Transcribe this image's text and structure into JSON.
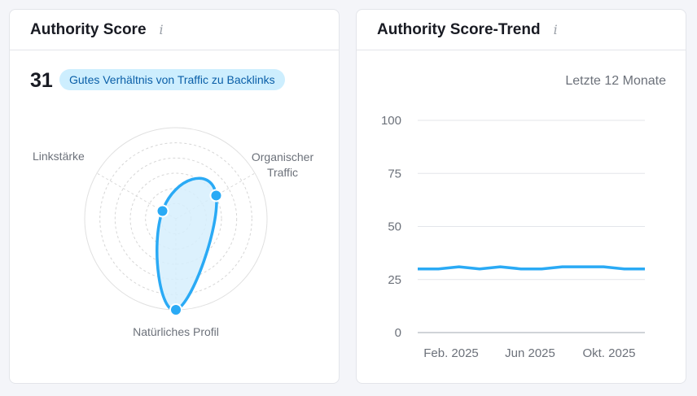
{
  "left_card": {
    "title": "Authority Score",
    "info_icon": "info-icon",
    "score": "31",
    "badge": "Gutes Verhältnis von Traffic zu Backlinks",
    "radar": {
      "axes": [
        "Linkstärke",
        "Organischer Traffic",
        "Natürliches Profil"
      ],
      "values_percent": [
        17,
        51,
        100
      ],
      "color": "#2aaaf5",
      "fill": "#d6effd"
    }
  },
  "right_card": {
    "title": "Authority Score-Trend",
    "info_icon": "info-icon",
    "period": "Letzte 12 Monate",
    "chart_data": {
      "type": "line",
      "y_ticks": [
        "100",
        "75",
        "50",
        "25",
        "0"
      ],
      "ylim": [
        0,
        100
      ],
      "x_labels": [
        "Feb. 2025",
        "Jun 2025",
        "Okt. 2025"
      ],
      "values": [
        30,
        30,
        31,
        30,
        31,
        30,
        30,
        31,
        31,
        31,
        30,
        30
      ],
      "color": "#2aaaf5",
      "grid": true
    }
  }
}
